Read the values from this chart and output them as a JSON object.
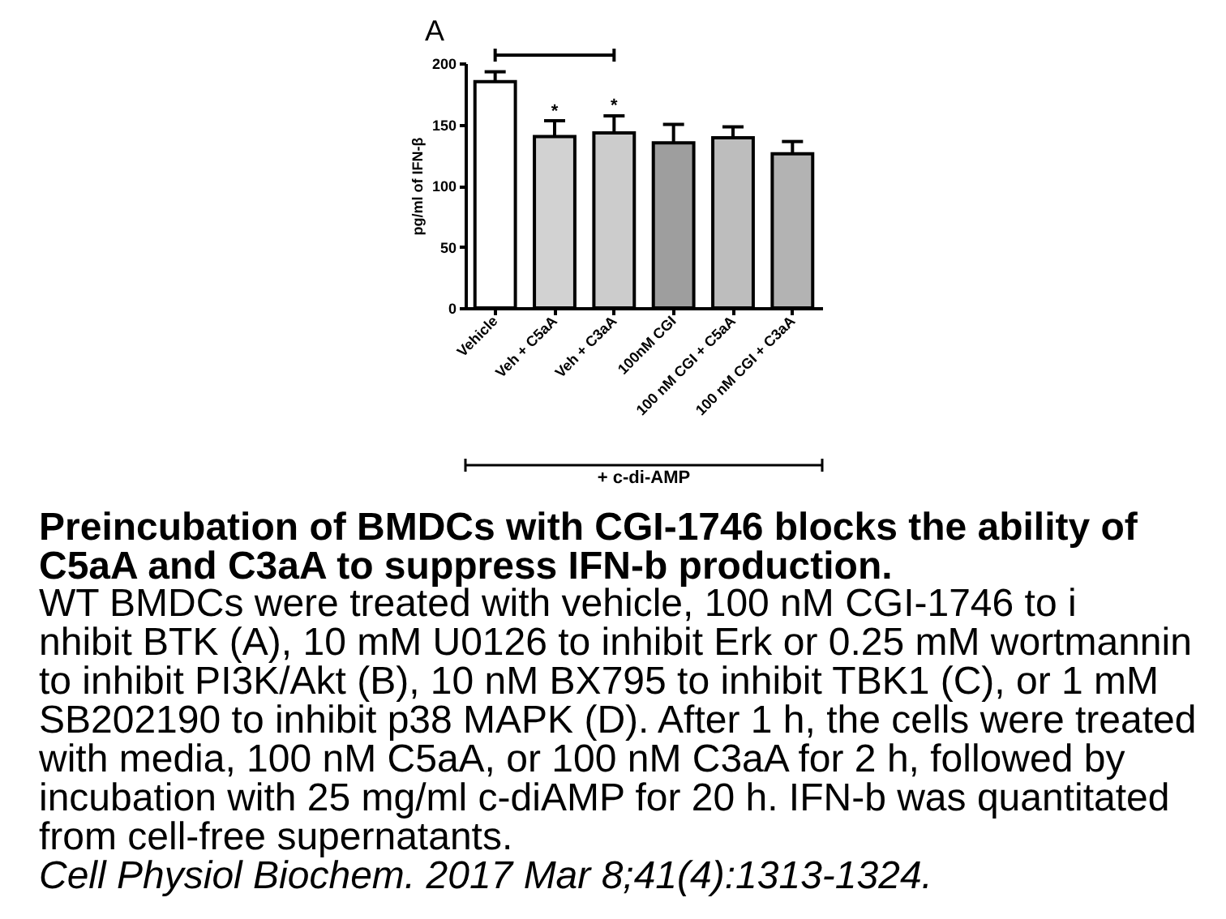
{
  "chart_data": {
    "type": "bar",
    "title": "Preincubation of BMDCs with CGI-1746 blocks the ability of\nC5aA and C3aA to suppress IFN-b production.",
    "ylabel": "pg/ml of IFN-β",
    "categories": [
      "Vehicle",
      "Veh + C5aA",
      "Veh + C3aA",
      "100nM CGI",
      "100 nM CGI + C5aA",
      "100 nM CGI + C3aA"
    ],
    "values": [
      185,
      140,
      143,
      135,
      139,
      126
    ],
    "colors": [
      "#ffffff",
      "#d2d2d2",
      "#cccccc",
      "#9e9e9e",
      "#bdbdbd",
      "#b3b3b3"
    ],
    "errors": [
      [
        185,
        193
      ],
      [
        140,
        153
      ],
      [
        143,
        157
      ],
      [
        135,
        150
      ],
      [
        139,
        148
      ],
      [
        126,
        136
      ]
    ],
    "ylim": [
      0,
      200
    ],
    "yticks": [
      0,
      50,
      100,
      150,
      200
    ],
    "annotations": [
      "A",
      {
        "text": "*",
        "x": "Veh + C5aA",
        "y": 160
      },
      {
        "text": "*",
        "x": "Veh + C3aA",
        "y": 165
      },
      "+ c-di-AMP",
      "WT BMDCs were treated with vehicle, 100 nM CGI-1746 to i\nnhibit BTK (A), 10 mM U0126 to inhibit Erk or 0.25 mM wortmannin\nto inhibit PI3K/Akt (B), 10 nM BX795 to inhibit TBK1 (C), or 1 mM\nSB202190 to inhibit p38 MAPK (D). After 1 h, the cells were treated\nwith media, 100 nM C5aA, or 100 nM C3aA for 2 h, followed by\nincubation with 25 mg/ml c-diAMP for 20 h. IFN-b was quantitated\nfrom cell-free supernatants.",
      "Cell Physiol Biochem. 2017 Mar 8;41(4):1313-1324."
    ]
  }
}
